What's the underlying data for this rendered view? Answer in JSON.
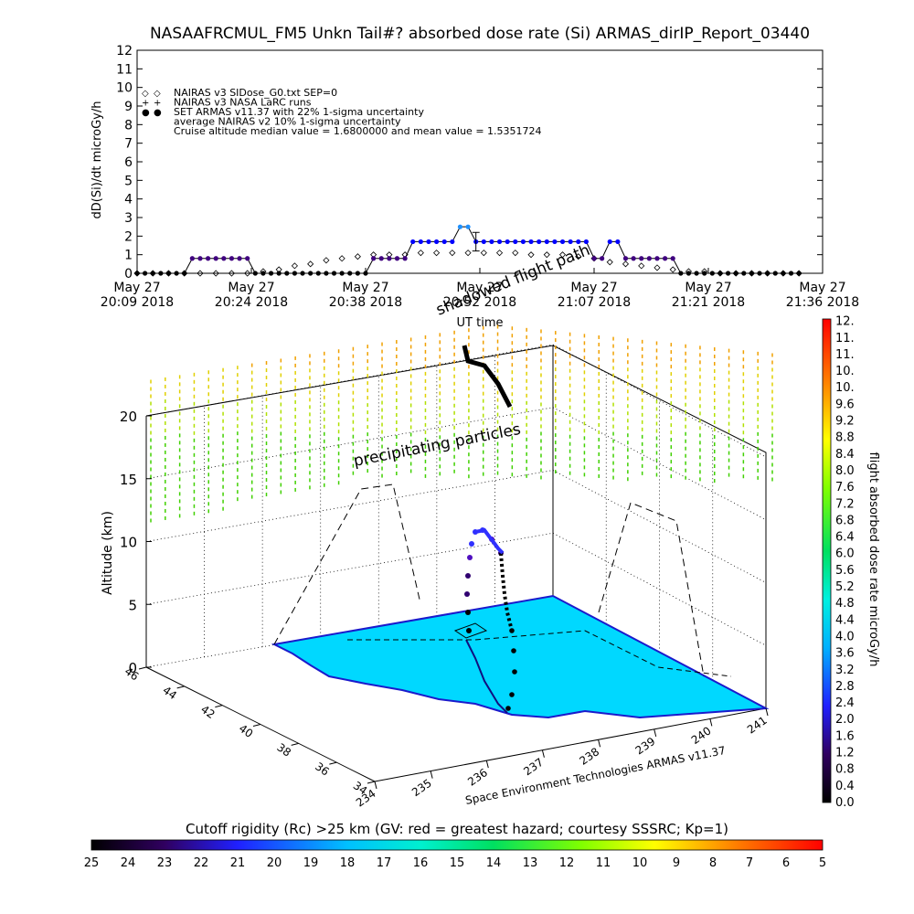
{
  "title": "NASAAFRCMUL_FM5 Unkn Tail#? absorbed dose rate (Si) ARMAS_dirIP_Report_03440",
  "colors": {
    "nairas_sep0": "#000000",
    "nairas_larc": "#000000",
    "armas": "#0000ff",
    "armas_peak": "#1e90ff",
    "armas_low": "#400080",
    "land": "#00d8ff",
    "flight_path": "#000000"
  },
  "chart_data": [
    {
      "type": "line",
      "ylabel": "dD(Si)/dt microGy/h",
      "xlabel": "UT time",
      "ylim": [
        0,
        12
      ],
      "y_ticks": [
        "0",
        "1",
        "2",
        "3",
        "4",
        "5",
        "6",
        "7",
        "8",
        "9",
        "10",
        "11",
        "12"
      ],
      "x_ticks": [
        {
          "date": "May 27",
          "time": "20:09 2018"
        },
        {
          "date": "May 27",
          "time": "20:24 2018"
        },
        {
          "date": "May 27",
          "time": "20:38 2018"
        },
        {
          "date": "May 27",
          "time": "20:52 2018"
        },
        {
          "date": "May 27",
          "time": "21:07 2018"
        },
        {
          "date": "May 27",
          "time": "21:21 2018"
        },
        {
          "date": "May 27",
          "time": "21:36 2018"
        }
      ],
      "x_range": [
        "20:09",
        "21:36"
      ],
      "legend": [
        {
          "symbol": "◇",
          "label": "NAIRAS v3 SIDose_G0.txt SEP=0"
        },
        {
          "symbol": "+",
          "label": "NAIRAS v3 NASA LaRC runs"
        },
        {
          "symbol": "●",
          "label": "SET ARMAS v11.37 with 22% 1-sigma uncertainty"
        },
        {
          "symbol": "",
          "label": "average NAIRAS v2 10% 1-sigma uncertainty"
        },
        {
          "symbol": "",
          "label": "Cruise altitude median value = 1.6800000 and mean value = 1.5351724"
        }
      ],
      "series": [
        {
          "name": "NAIRAS v3 SIDose_G0.txt SEP=0",
          "x": [
            "20:09",
            "20:11",
            "20:13",
            "20:15",
            "20:17",
            "20:19",
            "20:21",
            "20:23",
            "20:25",
            "20:27",
            "20:29",
            "20:31",
            "20:33",
            "20:35",
            "20:37",
            "20:39",
            "20:41",
            "20:43",
            "20:45",
            "20:47",
            "20:49",
            "20:51",
            "20:53",
            "20:55",
            "20:57",
            "20:59",
            "21:01",
            "21:03",
            "21:05",
            "21:07",
            "21:09",
            "21:11",
            "21:13",
            "21:15",
            "21:17",
            "21:19",
            "21:21",
            "21:23",
            "21:25",
            "21:27",
            "21:29",
            "21:31",
            "21:33"
          ],
          "values": [
            0,
            0,
            0,
            0,
            0,
            0,
            0,
            0,
            0.1,
            0.2,
            0.4,
            0.5,
            0.7,
            0.8,
            0.9,
            1.0,
            1.0,
            1.0,
            1.1,
            1.1,
            1.1,
            1.1,
            1.1,
            1.1,
            1.1,
            1.0,
            1.0,
            1.0,
            0.9,
            0.8,
            0.6,
            0.5,
            0.4,
            0.3,
            0.2,
            0.1,
            0.1,
            0,
            0,
            0,
            0,
            0,
            0
          ]
        },
        {
          "name": "SET ARMAS v11.37 with 22% 1-sigma uncertainty",
          "x": [
            "20:09",
            "20:10",
            "20:11",
            "20:12",
            "20:13",
            "20:14",
            "20:15",
            "20:16",
            "20:17",
            "20:18",
            "20:19",
            "20:20",
            "20:21",
            "20:22",
            "20:23",
            "20:24",
            "20:25",
            "20:26",
            "20:27",
            "20:28",
            "20:29",
            "20:30",
            "20:31",
            "20:32",
            "20:33",
            "20:34",
            "20:35",
            "20:36",
            "20:37",
            "20:38",
            "20:39",
            "20:40",
            "20:41",
            "20:42",
            "20:43",
            "20:44",
            "20:45",
            "20:46",
            "20:47",
            "20:48",
            "20:49",
            "20:50",
            "20:51",
            "20:52",
            "20:53",
            "20:54",
            "20:55",
            "20:56",
            "20:57",
            "20:58",
            "20:59",
            "21:00",
            "21:01",
            "21:02",
            "21:03",
            "21:04",
            "21:05",
            "21:06",
            "21:07",
            "21:08",
            "21:09",
            "21:10",
            "21:11",
            "21:12",
            "21:13",
            "21:14",
            "21:15",
            "21:16",
            "21:17",
            "21:18",
            "21:19",
            "21:20",
            "21:21",
            "21:22",
            "21:23",
            "21:24",
            "21:25",
            "21:26",
            "21:27",
            "21:28",
            "21:29",
            "21:30",
            "21:31",
            "21:32",
            "21:33"
          ],
          "values": [
            0,
            0,
            0,
            0,
            0,
            0,
            0,
            0.8,
            0.8,
            0.8,
            0.8,
            0.8,
            0.8,
            0.8,
            0.8,
            0,
            0,
            0,
            0,
            0,
            0,
            0,
            0,
            0,
            0,
            0,
            0,
            0,
            0,
            0,
            0.8,
            0.8,
            0.8,
            0.8,
            0.8,
            1.7,
            1.7,
            1.7,
            1.7,
            1.7,
            1.7,
            2.5,
            2.5,
            1.7,
            1.7,
            1.7,
            1.7,
            1.7,
            1.7,
            1.7,
            1.7,
            1.7,
            1.7,
            1.7,
            1.7,
            1.7,
            1.7,
            1.7,
            0.8,
            0.8,
            1.7,
            1.7,
            0.8,
            0.8,
            0.8,
            0.8,
            0.8,
            0.8,
            0.8,
            0,
            0,
            0,
            0,
            0,
            0,
            0,
            0,
            0,
            0,
            0,
            0,
            0,
            0,
            0,
            0
          ]
        }
      ],
      "error_bar": {
        "x": "20:52",
        "value": 1.7,
        "low": 1.2,
        "high": 2.2
      }
    },
    {
      "type": "scatter",
      "ylabel": "Altitude (km)",
      "altitude_ticks": [
        "0",
        "5",
        "10",
        "15",
        "20"
      ],
      "latitude_ticks": [
        "46",
        "44",
        "42",
        "40",
        "38",
        "36",
        "34"
      ],
      "longitude_ticks": [
        "234",
        "235",
        "236",
        "237",
        "238",
        "239",
        "240",
        "241"
      ],
      "annotations": [
        "shadowed flight path",
        "precipitating particles",
        "Space Environment Technologies ARMAS v11.37"
      ],
      "flight_path": {
        "max_altitude_km": 11,
        "dose_rate_microGy_h": [
          0.4,
          0.8,
          1.2,
          1.6,
          2.4,
          3.2,
          3.2,
          3.2,
          2.4,
          1.6,
          0.8,
          0.4
        ]
      },
      "dose_colorbar": {
        "label": "flight absorbed dose rate microGy/h",
        "ticks": [
          "0.0",
          "0.4",
          "0.8",
          "1.2",
          "1.6",
          "2.0",
          "2.4",
          "2.8",
          "3.2",
          "3.6",
          "4.0",
          "4.4",
          "4.8",
          "5.2",
          "5.6",
          "6.0",
          "6.4",
          "6.8",
          "7.2",
          "7.6",
          "8.0",
          "8.4",
          "8.8",
          "9.2",
          "9.6",
          "10.",
          "10.",
          "11.",
          "11.",
          "12."
        ]
      },
      "rigidity_colorbar": {
        "label": "Cutoff rigidity (Rc) >25 km (GV: red = greatest hazard; courtesy SSSRC; Kp=1)",
        "ticks": [
          "25",
          "24",
          "23",
          "22",
          "21",
          "20",
          "19",
          "18",
          "17",
          "16",
          "15",
          "14",
          "13",
          "12",
          "11",
          "10",
          "9",
          "8",
          "7",
          "6",
          "5"
        ]
      }
    }
  ]
}
